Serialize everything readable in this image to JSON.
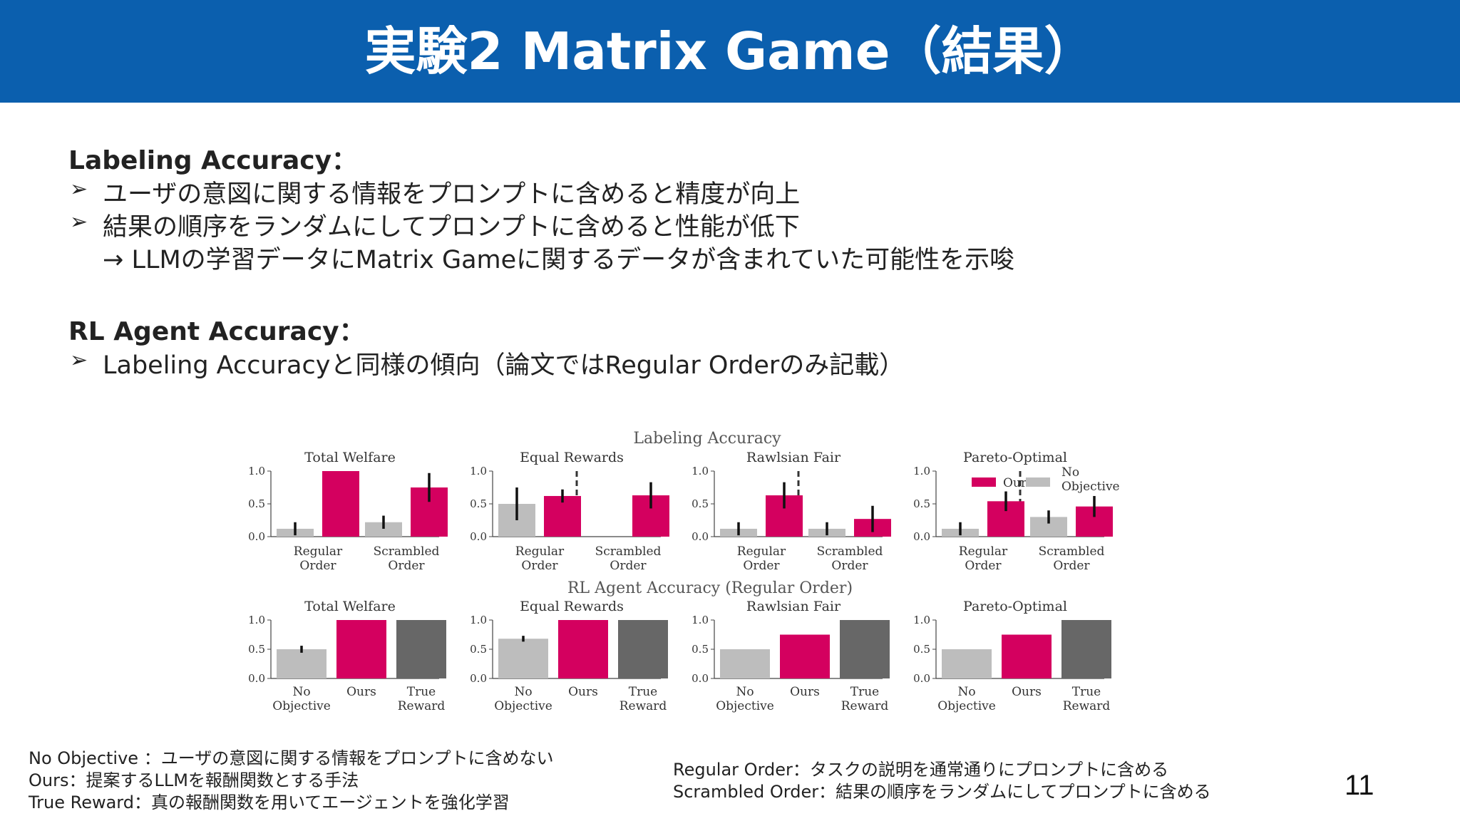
{
  "slide": {
    "title": "実験2 Matrix Game（結果）",
    "page_number": "11"
  },
  "section1": {
    "heading": "Labeling Accuracy：",
    "bullets": [
      "ユーザの意図に関する情報をプロンプトに含めると精度が向上",
      "結果の順序をランダムにしてプロンプトに含めると性能が低下"
    ],
    "note": "→ LLMの学習データにMatrix Gameに関するデータが含まれていた可能性を示唆"
  },
  "section2": {
    "heading": "RL Agent Accuracy：",
    "bullets": [
      "Labeling Accuracyと同様の傾向（論文ではRegular Orderのみ記載）"
    ]
  },
  "bullet_marker": "➢",
  "footnotes_left": [
    "No Objective ：ユーザの意図に関する情報をプロンプトに含めない",
    "Ours：提案するLLMを報酬関数とする手法",
    "True Reward：真の報酬関数を用いてエージェントを強化学習"
  ],
  "footnotes_right": [
    "Regular Order：タスクの説明を通常通りにプロンプトに含める",
    "Scrambled Order：結果の順序をランダムにしてプロンプトに含める"
  ],
  "colors": {
    "header": "#0b5fae",
    "ours": "#d4005f",
    "no_objective": "#bdbdbd",
    "true_reward": "#676767"
  },
  "chart_data": [
    {
      "type": "bar",
      "title": "Labeling Accuracy",
      "legend": {
        "placement": "inside-right-of-last-panel",
        "entries": [
          "Ours",
          "No Objective"
        ]
      },
      "panels": [
        {
          "title": "Total Welfare",
          "categories": [
            "Regular Order",
            "Scrambled Order"
          ],
          "ylim": [
            0,
            1.0
          ],
          "yticks": [
            "1.0",
            "0.5",
            "0.0"
          ],
          "series": [
            {
              "name": "No Objective",
              "values": [
                0.12,
                0.22
              ],
              "err": [
                0.1,
                0.1
              ]
            },
            {
              "name": "Ours",
              "values": [
                1.0,
                0.75
              ],
              "err": [
                0.0,
                0.22
              ]
            }
          ]
        },
        {
          "title": "Equal Rewards",
          "categories": [
            "Regular Order",
            "Scrambled Order"
          ],
          "ylim": [
            0,
            1.0
          ],
          "yticks": [
            "1.0",
            "0.5",
            "0.0"
          ],
          "series": [
            {
              "name": "No Objective",
              "values": [
                0.5,
                0.0
              ],
              "err": [
                0.25,
                0.0
              ]
            },
            {
              "name": "Ours",
              "values": [
                0.62,
                0.63
              ],
              "err": [
                0.1,
                0.2
              ]
            }
          ]
        },
        {
          "title": "Rawlsian Fair",
          "categories": [
            "Regular Order",
            "Scrambled Order"
          ],
          "ylim": [
            0,
            1.0
          ],
          "yticks": [
            "1.0",
            "0.5",
            "0.0"
          ],
          "series": [
            {
              "name": "No Objective",
              "values": [
                0.12,
                0.12
              ],
              "err": [
                0.1,
                0.1
              ]
            },
            {
              "name": "Ours",
              "values": [
                0.63,
                0.27
              ],
              "err": [
                0.2,
                0.2
              ]
            }
          ]
        },
        {
          "title": "Pareto-Optimal",
          "categories": [
            "Regular Order",
            "Scrambled Order"
          ],
          "ylim": [
            0,
            1.0
          ],
          "yticks": [
            "1.0",
            "0.5",
            "0.0"
          ],
          "series": [
            {
              "name": "No Objective",
              "values": [
                0.12,
                0.3
              ],
              "err": [
                0.1,
                0.1
              ]
            },
            {
              "name": "Ours",
              "values": [
                0.54,
                0.46
              ],
              "err": [
                0.15,
                0.16
              ]
            }
          ]
        }
      ]
    },
    {
      "type": "bar",
      "title": "RL Agent Accuracy (Regular Order)",
      "panels": [
        {
          "title": "Total Welfare",
          "categories": [
            "No Objective",
            "Ours",
            "True Reward"
          ],
          "ylim": [
            0,
            1.0
          ],
          "yticks": [
            "1.0",
            "0.5",
            "0.0"
          ],
          "values": [
            0.5,
            1.0,
            1.0
          ],
          "err": [
            0.06,
            0.0,
            0.0
          ]
        },
        {
          "title": "Equal Rewards",
          "categories": [
            "No Objective",
            "Ours",
            "True Reward"
          ],
          "ylim": [
            0,
            1.0
          ],
          "yticks": [
            "1.0",
            "0.5",
            "0.0"
          ],
          "values": [
            0.68,
            1.0,
            1.0
          ],
          "err": [
            0.05,
            0.0,
            0.0
          ]
        },
        {
          "title": "Rawlsian Fair",
          "categories": [
            "No Objective",
            "Ours",
            "True Reward"
          ],
          "ylim": [
            0,
            1.0
          ],
          "yticks": [
            "1.0",
            "0.5",
            "0.0"
          ],
          "values": [
            0.5,
            0.75,
            1.0
          ],
          "err": [
            0.0,
            0.0,
            0.0
          ]
        },
        {
          "title": "Pareto-Optimal",
          "categories": [
            "No Objective",
            "Ours",
            "True Reward"
          ],
          "ylim": [
            0,
            1.0
          ],
          "yticks": [
            "1.0",
            "0.5",
            "0.0"
          ],
          "values": [
            0.5,
            0.75,
            1.0
          ],
          "err": [
            0.0,
            0.0,
            0.0
          ]
        }
      ]
    }
  ]
}
